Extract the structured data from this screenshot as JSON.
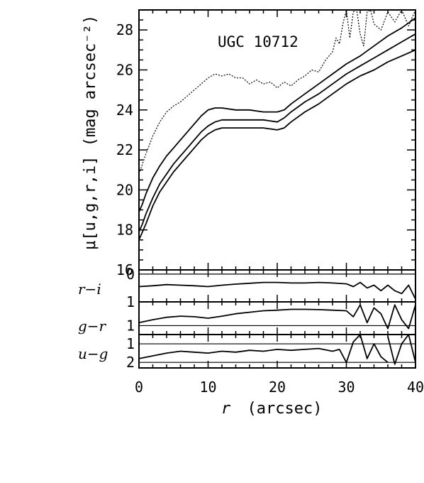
{
  "chart_data": {
    "type": "line",
    "title": "UGC 10712",
    "xlabel_var": "r",
    "xlabel_unit": "(arcsec)",
    "ylabel": "μ[u,g,r,i] (mag arcsec⁻²)",
    "xlim": [
      0,
      40
    ],
    "x_ticks": [
      "0",
      "10",
      "20",
      "30",
      "40"
    ],
    "panels": [
      {
        "id": "main",
        "ylim": [
          29,
          16
        ],
        "y_ticks": [
          "16",
          "18",
          "20",
          "22",
          "24",
          "26",
          "28"
        ],
        "series": [
          {
            "style": "solid",
            "x": [
              0,
              0.5,
              1,
              2,
              3,
              4,
              5,
              6,
              7,
              8,
              9,
              10,
              11,
              12,
              14,
              16,
              18,
              20,
              21,
              22,
              24,
              26,
              28,
              30,
              32,
              34,
              36,
              38,
              40
            ],
            "y": [
              17.5,
              17.9,
              18.3,
              19.2,
              19.9,
              20.4,
              20.9,
              21.3,
              21.7,
              22.1,
              22.5,
              22.8,
              23.0,
              23.1,
              23.1,
              23.1,
              23.1,
              23.0,
              23.1,
              23.4,
              23.9,
              24.3,
              24.8,
              25.3,
              25.7,
              26.0,
              26.4,
              26.7,
              27.0
            ]
          },
          {
            "style": "solid",
            "x": [
              0,
              0.5,
              1,
              2,
              3,
              4,
              5,
              6,
              7,
              8,
              9,
              10,
              11,
              12,
              14,
              16,
              18,
              20,
              21,
              22,
              24,
              26,
              28,
              30,
              32,
              34,
              36,
              38,
              40
            ],
            "y": [
              17.9,
              18.3,
              18.8,
              19.6,
              20.3,
              20.8,
              21.3,
              21.7,
              22.1,
              22.5,
              22.9,
              23.2,
              23.4,
              23.5,
              23.5,
              23.5,
              23.5,
              23.4,
              23.6,
              23.9,
              24.4,
              24.8,
              25.3,
              25.8,
              26.2,
              26.6,
              27.0,
              27.4,
              27.8
            ]
          },
          {
            "style": "solid",
            "x": [
              0,
              0.5,
              1,
              2,
              3,
              4,
              5,
              6,
              7,
              8,
              9,
              10,
              11,
              12,
              14,
              16,
              18,
              20,
              21,
              22,
              24,
              26,
              28,
              30,
              32,
              34,
              36,
              38,
              40
            ],
            "y": [
              18.9,
              19.3,
              19.8,
              20.6,
              21.2,
              21.7,
              22.1,
              22.5,
              22.9,
              23.3,
              23.7,
              24.0,
              24.1,
              24.1,
              24.0,
              24.0,
              23.9,
              23.9,
              24.0,
              24.3,
              24.8,
              25.3,
              25.8,
              26.3,
              26.7,
              27.2,
              27.7,
              28.1,
              28.6
            ]
          },
          {
            "style": "dotted",
            "x": [
              0,
              0.5,
              1,
              2,
              3,
              4,
              5,
              6,
              7,
              8,
              9,
              10,
              11,
              12,
              13,
              14,
              15,
              16,
              17,
              18,
              19,
              20,
              21,
              22,
              23,
              24,
              25,
              26,
              27,
              28,
              28.5,
              29,
              29.5,
              30,
              30.5,
              31,
              31.5,
              32,
              32.5,
              33,
              33.5,
              34,
              35,
              36,
              37,
              38,
              39,
              40
            ],
            "y": [
              20.8,
              21.3,
              21.8,
              22.7,
              23.4,
              23.9,
              24.2,
              24.4,
              24.7,
              25.0,
              25.3,
              25.6,
              25.8,
              25.7,
              25.8,
              25.6,
              25.6,
              25.3,
              25.5,
              25.3,
              25.4,
              25.1,
              25.4,
              25.2,
              25.5,
              25.7,
              26.0,
              25.9,
              26.5,
              26.9,
              27.6,
              27.3,
              28.3,
              29.0,
              27.6,
              28.9,
              29.0,
              27.8,
              27.2,
              28.9,
              29.0,
              28.3,
              28.0,
              28.9,
              28.4,
              29.0,
              28.2,
              29.0
            ]
          }
        ]
      },
      {
        "id": "r-i",
        "label": "r−i",
        "ylim": [
          -0.15,
          1.0
        ],
        "y_ticks": [
          "0",
          "1"
        ],
        "series": [
          {
            "style": "solid",
            "x": [
              0,
              2,
              4,
              6,
              8,
              10,
              12,
              14,
              16,
              18,
              20,
              22,
              24,
              26,
              28,
              30,
              31,
              32,
              33,
              34,
              35,
              36,
              37,
              38,
              39,
              40
            ],
            "y": [
              0.45,
              0.42,
              0.38,
              0.4,
              0.42,
              0.45,
              0.4,
              0.36,
              0.33,
              0.3,
              0.3,
              0.32,
              0.32,
              0.3,
              0.32,
              0.35,
              0.45,
              0.3,
              0.5,
              0.4,
              0.6,
              0.4,
              0.6,
              0.7,
              0.4,
              0.9
            ]
          }
        ]
      },
      {
        "id": "g-r",
        "label": "g−r",
        "ylim": [
          0.2,
          1.3
        ],
        "y_ticks": [
          "1"
        ],
        "series": [
          {
            "style": "solid",
            "x": [
              0,
              2,
              4,
              6,
              8,
              10,
              12,
              14,
              16,
              18,
              20,
              22,
              24,
              26,
              28,
              30,
              31,
              32,
              33,
              34,
              35,
              36,
              37,
              38,
              39,
              40
            ],
            "y": [
              0.9,
              0.8,
              0.72,
              0.68,
              0.7,
              0.75,
              0.68,
              0.6,
              0.55,
              0.5,
              0.48,
              0.45,
              0.45,
              0.46,
              0.48,
              0.5,
              0.7,
              0.3,
              0.9,
              0.4,
              0.6,
              1.1,
              0.3,
              0.8,
              1.1,
              0.3
            ]
          }
        ]
      },
      {
        "id": "u-g",
        "label": "u−g",
        "ylim": [
          0.5,
          2.3
        ],
        "y_ticks": [
          "2",
          "1"
        ],
        "series": [
          {
            "style": "solid",
            "x": [
              0,
              2,
              4,
              6,
              8,
              10,
              12,
              14,
              16,
              18,
              20,
              22,
              24,
              26,
              28,
              29,
              30,
              31,
              32,
              33,
              34,
              35,
              36
            ],
            "y": [
              1.8,
              1.65,
              1.5,
              1.4,
              1.45,
              1.5,
              1.4,
              1.45,
              1.35,
              1.4,
              1.3,
              1.35,
              1.3,
              1.25,
              1.4,
              1.3,
              2.0,
              0.9,
              0.5,
              1.8,
              1.0,
              1.7,
              2.0
            ]
          },
          {
            "style": "solid",
            "x": [
              36,
              37,
              38,
              39,
              40
            ],
            "y": [
              0.6,
              2.1,
              1.0,
              0.5,
              2.0
            ]
          }
        ]
      }
    ]
  }
}
